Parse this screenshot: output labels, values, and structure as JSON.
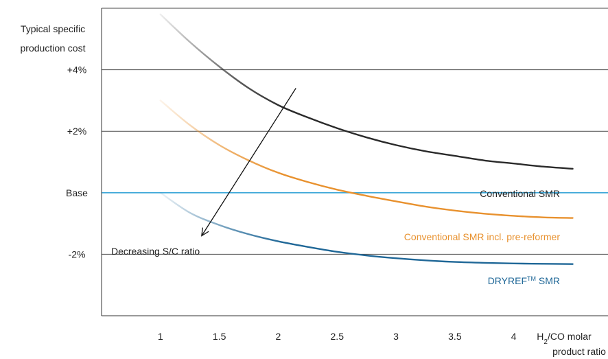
{
  "chart_data": {
    "type": "line",
    "title": "",
    "ylabel_line1": "Typical specific",
    "ylabel_line2": "production cost",
    "xlabel_line1_main": "H",
    "xlabel_line1_sub": "2",
    "xlabel_line1_rest": "/CO molar",
    "xlabel_line2": "product ratio",
    "x_ticks": [
      "1",
      "1.5",
      "2",
      "2.5",
      "3",
      "3.5",
      "4"
    ],
    "y_ticks": [
      {
        "value": 4,
        "label": "+4%"
      },
      {
        "value": 2,
        "label": "+2%"
      },
      {
        "value": 0,
        "label": "Base"
      },
      {
        "value": -2,
        "label": "-2%"
      }
    ],
    "xlim": [
      0.5,
      4.8
    ],
    "ylim": [
      -4,
      6
    ],
    "grid": true,
    "colors": {
      "conventional": "#2a2a2a",
      "prereformer": "#e8912e",
      "dryref": "#1f6797",
      "base_line": "#3aa6d8",
      "grid": "#4a4a4a"
    },
    "series": [
      {
        "name": "Conventional SMR",
        "color_key": "conventional",
        "x": [
          1.0,
          1.25,
          1.5,
          1.75,
          2.0,
          2.25,
          2.5,
          2.75,
          3.0,
          3.25,
          3.5,
          3.75,
          4.0,
          4.25,
          4.5
        ],
        "y": [
          5.8,
          4.9,
          4.1,
          3.4,
          2.85,
          2.45,
          2.1,
          1.8,
          1.55,
          1.35,
          1.2,
          1.05,
          0.95,
          0.85,
          0.78
        ]
      },
      {
        "name_parts": [
          "Conventional SMR incl. pre-reformer"
        ],
        "name": "Conventional SMR incl. pre-reformer",
        "color_key": "prereformer",
        "x": [
          1.0,
          1.25,
          1.5,
          1.75,
          2.0,
          2.25,
          2.5,
          2.75,
          3.0,
          3.25,
          3.5,
          3.75,
          4.0,
          4.25,
          4.5
        ],
        "y": [
          3.0,
          2.2,
          1.55,
          1.05,
          0.65,
          0.35,
          0.1,
          -0.1,
          -0.28,
          -0.45,
          -0.58,
          -0.68,
          -0.75,
          -0.8,
          -0.82
        ]
      },
      {
        "name": "DRYREF SMR",
        "color_key": "dryref",
        "x": [
          1.0,
          1.25,
          1.5,
          1.75,
          2.0,
          2.25,
          2.5,
          2.75,
          3.0,
          3.25,
          3.5,
          3.75,
          4.0,
          4.25,
          4.5
        ],
        "y": [
          0.0,
          -0.65,
          -1.05,
          -1.35,
          -1.58,
          -1.76,
          -1.92,
          -2.04,
          -2.13,
          -2.2,
          -2.25,
          -2.28,
          -2.3,
          -2.31,
          -2.32
        ]
      }
    ],
    "labels": {
      "conventional": "Conventional SMR",
      "prereformer": "Conventional SMR incl. pre-reformer",
      "dryref_main": "DRYREF",
      "dryref_sup": "TM",
      "dryref_rest": " SMR",
      "annotation": "Decreasing S/C ratio"
    },
    "annotation_arrow": {
      "from": {
        "x": 2.15,
        "y": 3.4
      },
      "to": {
        "x": 1.35,
        "y": -1.4
      }
    }
  }
}
